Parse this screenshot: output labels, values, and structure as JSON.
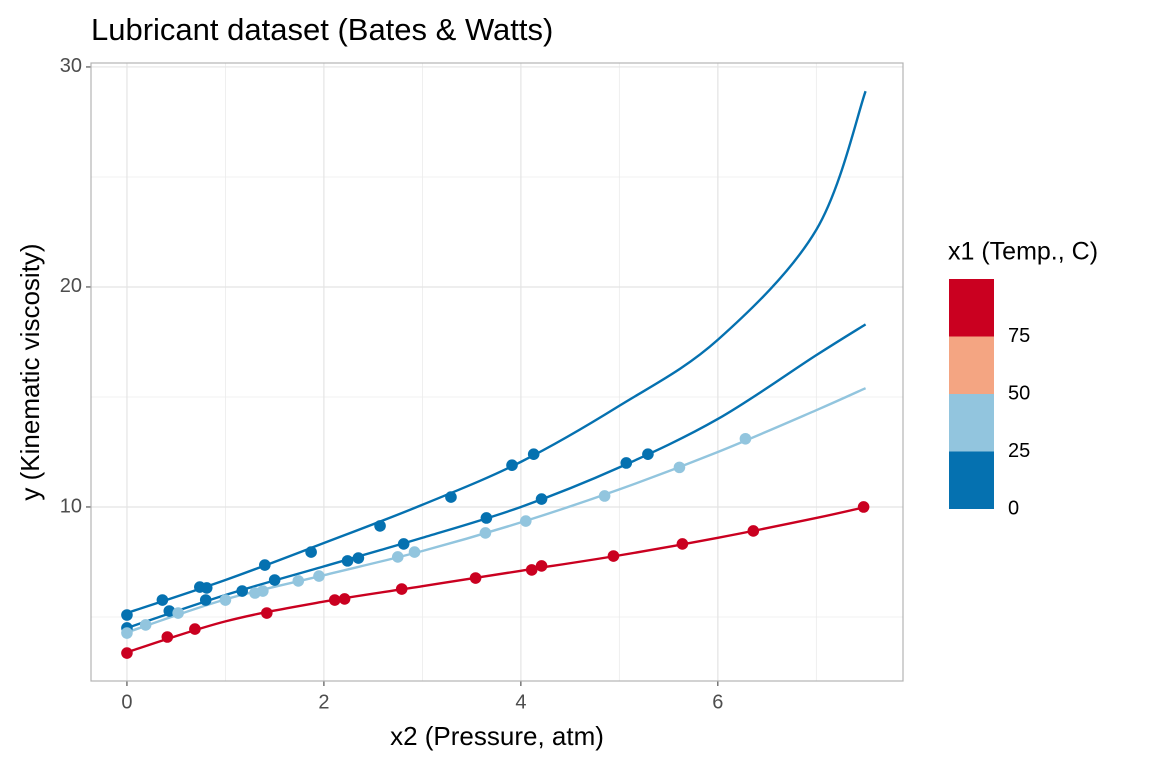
{
  "chart_data": {
    "type": "scatter",
    "title": "Lubricant dataset (Bates & Watts)",
    "x_label": "x2 (Pressure, atm)",
    "y_label": "y (Kinematic viscosity)",
    "xlim": [
      -0.365,
      7.88
    ],
    "ylim": [
      2.09,
      30.18
    ],
    "xticks": [
      0,
      2,
      4,
      6
    ],
    "yticks": [
      10,
      20,
      30
    ],
    "x_minor_ticks": [
      1,
      3,
      5,
      7
    ],
    "y_minor_ticks": [
      5,
      15,
      25
    ],
    "grid": true,
    "series": [
      {
        "color": "#0571b0",
        "x": [
          0,
          0.36,
          0.74,
          0.81,
          1.4,
          1.87,
          2.57,
          3.29,
          3.91,
          4.13
        ],
        "values": [
          5.09,
          5.77,
          6.36,
          6.32,
          7.36,
          7.95,
          9.14,
          10.45,
          11.9,
          12.4
        ],
        "fit_x": [
          0,
          1,
          2,
          3,
          4,
          5,
          6,
          7,
          7.5
        ],
        "fit_values": [
          5.18,
          6.68,
          8.36,
          10.1,
          12.05,
          14.6,
          17.6,
          22.6,
          28.9
        ]
      },
      {
        "color": "#0571b0",
        "x": [
          0,
          0.43,
          0.8,
          1.17,
          1.5,
          2.24,
          2.35,
          2.81,
          3.65,
          4.21,
          5.07,
          5.29
        ],
        "values": [
          4.5,
          5.27,
          5.77,
          6.18,
          6.68,
          7.55,
          7.68,
          8.32,
          9.5,
          10.36,
          12.0,
          12.4
        ],
        "fit_x": [
          0,
          1,
          2,
          3,
          4,
          5,
          6,
          7,
          7.5
        ],
        "fit_values": [
          4.5,
          6.0,
          7.3,
          8.6,
          10.0,
          11.8,
          14.0,
          16.9,
          18.3
        ]
      },
      {
        "color": "#92c5de",
        "x": [
          0,
          0.19,
          0.52,
          1.0,
          1.3,
          1.38,
          1.74,
          1.95,
          2.75,
          2.92,
          3.64,
          4.05,
          4.85,
          5.61,
          6.28
        ],
        "values": [
          4.27,
          4.64,
          5.18,
          5.77,
          6.09,
          6.18,
          6.64,
          6.86,
          7.73,
          7.95,
          8.82,
          9.36,
          10.5,
          11.8,
          13.1
        ],
        "fit_x": [
          0,
          1,
          2,
          3,
          4,
          5,
          6,
          7,
          7.5
        ],
        "fit_values": [
          4.3,
          5.8,
          6.9,
          8.0,
          9.3,
          10.8,
          12.5,
          14.4,
          15.4
        ]
      },
      {
        "color": "#ca0020",
        "x": [
          0,
          0.41,
          0.69,
          1.42,
          2.11,
          2.21,
          2.79,
          3.54,
          4.11,
          4.21,
          4.94,
          5.64,
          6.36,
          7.48
        ],
        "values": [
          3.36,
          4.09,
          4.45,
          5.18,
          5.77,
          5.82,
          6.27,
          6.77,
          7.14,
          7.32,
          7.77,
          8.32,
          8.91,
          10.0
        ],
        "fit_x": [
          0,
          1,
          2,
          3,
          4,
          5,
          6,
          7,
          7.5
        ],
        "fit_values": [
          3.4,
          4.8,
          5.7,
          6.4,
          7.1,
          7.8,
          8.6,
          9.5,
          10.0
        ]
      }
    ],
    "legend": {
      "title": "x1 (Temp., C)",
      "breaks": [
        0,
        25,
        50,
        75
      ],
      "colors": [
        "#0571b0",
        "#92c5de",
        "#f4a582",
        "#ca0020"
      ]
    }
  }
}
